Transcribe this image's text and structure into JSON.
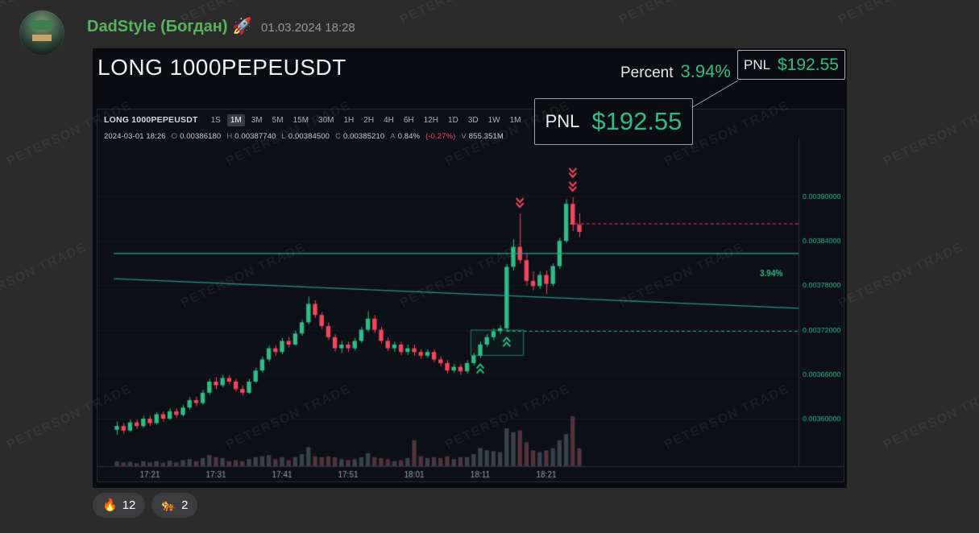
{
  "watermark": {
    "text": "PETERSON TRADE"
  },
  "header": {
    "name": "DadStyle (Богдан) 🚀",
    "timestamp": "01.03.2024 18:28"
  },
  "card": {
    "title": "LONG 1000PEPEUSDT",
    "percent_label": "Percent",
    "percent_value": "3.94%",
    "pnl_label": "PNL",
    "pnl_value": "$192.55",
    "callout": {
      "pnl_label": "PNL",
      "pnl_value": "$192.55"
    }
  },
  "colors": {
    "green": "#2ebd85",
    "red": "#f6465d",
    "teal": "#26a69a",
    "axis_text": "#2ebd85",
    "time_text": "#9aa0a6"
  },
  "chart_data": {
    "type": "candlestick",
    "symbol": "LONG 1000PEPEUSDT",
    "timeframes": [
      "1S",
      "1M",
      "3M",
      "5M",
      "15M",
      "30M",
      "1H",
      "2H",
      "4H",
      "6H",
      "12H",
      "1D",
      "3D",
      "1W",
      "1M"
    ],
    "active_timeframe_index": 1,
    "info_bar": {
      "datetime": "2024-03-01 18:26",
      "fields": [
        [
          "O",
          "0.00386180"
        ],
        [
          "H",
          "0.00387740"
        ],
        [
          "L",
          "0.00384500"
        ],
        [
          "C",
          "0.00385210"
        ],
        [
          "A",
          "0.84%"
        ]
      ],
      "change": "(-0.27%)",
      "volume": [
        "V",
        "855.351M"
      ]
    },
    "price_unit": 1e-05,
    "y_axis": {
      "labels": [
        "0.00390000",
        "0.00384000",
        "0.00378000",
        "0.00372000",
        "0.00366000",
        "0.00360000"
      ],
      "values": [
        390,
        384,
        378,
        372,
        366,
        360
      ]
    },
    "x_axis": {
      "labels": [
        "17:21",
        "17:31",
        "17:41",
        "17:51",
        "18:01",
        "18:11",
        "18:21"
      ],
      "indices": [
        5,
        15,
        25,
        35,
        45,
        55,
        65
      ]
    },
    "start_time": "17:16",
    "interval_minutes": 1,
    "candles": [
      [
        358.5,
        359.6,
        357.8,
        359.0,
        0.5
      ],
      [
        359.0,
        359.4,
        358.0,
        358.4,
        0.4
      ],
      [
        358.4,
        359.9,
        358.2,
        359.5,
        0.45
      ],
      [
        359.5,
        359.9,
        358.6,
        359.0,
        0.3
      ],
      [
        359.0,
        360.4,
        358.8,
        360.0,
        0.5
      ],
      [
        360.0,
        360.4,
        359.0,
        359.4,
        0.4
      ],
      [
        359.4,
        360.9,
        359.2,
        360.6,
        0.5
      ],
      [
        360.6,
        361.0,
        359.6,
        360.0,
        0.35
      ],
      [
        360.0,
        361.4,
        359.8,
        361.0,
        0.55
      ],
      [
        361.0,
        361.4,
        360.1,
        360.5,
        0.4
      ],
      [
        360.5,
        361.9,
        360.3,
        361.5,
        0.6
      ],
      [
        361.5,
        362.9,
        361.2,
        362.5,
        0.7
      ],
      [
        362.5,
        363.0,
        361.7,
        362.1,
        0.5
      ],
      [
        362.1,
        363.9,
        361.9,
        363.5,
        0.8
      ],
      [
        363.5,
        365.4,
        363.2,
        365.0,
        1.1
      ],
      [
        365.0,
        365.6,
        364.0,
        364.5,
        0.9
      ],
      [
        364.5,
        365.9,
        364.2,
        365.5,
        0.8
      ],
      [
        365.5,
        365.9,
        364.6,
        365.0,
        0.5
      ],
      [
        365.0,
        365.4,
        363.7,
        364.0,
        0.6
      ],
      [
        364.0,
        364.5,
        363.1,
        363.5,
        0.5
      ],
      [
        363.5,
        365.4,
        363.3,
        365.0,
        0.7
      ],
      [
        365.0,
        366.9,
        364.8,
        366.5,
        0.9
      ],
      [
        366.5,
        368.4,
        366.2,
        368.0,
        1.0
      ],
      [
        368.0,
        369.9,
        367.7,
        369.5,
        1.1
      ],
      [
        369.5,
        369.9,
        368.5,
        369.0,
        0.7
      ],
      [
        369.0,
        370.9,
        368.7,
        370.5,
        0.9
      ],
      [
        370.5,
        371.0,
        369.6,
        370.0,
        0.6
      ],
      [
        370.0,
        371.9,
        369.8,
        371.5,
        0.9
      ],
      [
        371.5,
        373.4,
        371.2,
        373.0,
        1.2
      ],
      [
        373.0,
        376.5,
        372.7,
        375.5,
        1.9
      ],
      [
        375.5,
        376.0,
        373.6,
        374.0,
        1.0
      ],
      [
        374.0,
        374.4,
        372.1,
        372.5,
        0.9
      ],
      [
        372.5,
        373.0,
        370.6,
        371.0,
        1.0
      ],
      [
        371.0,
        371.4,
        369.1,
        369.5,
        0.9
      ],
      [
        369.5,
        370.5,
        368.9,
        370.0,
        0.7
      ],
      [
        370.0,
        370.4,
        369.0,
        369.5,
        0.6
      ],
      [
        369.5,
        370.9,
        369.2,
        370.5,
        0.7
      ],
      [
        370.5,
        372.4,
        370.2,
        372.0,
        0.9
      ],
      [
        372.0,
        374.5,
        371.7,
        373.5,
        1.3
      ],
      [
        373.5,
        374.0,
        371.6,
        372.0,
        0.9
      ],
      [
        372.0,
        372.4,
        370.1,
        370.5,
        0.8
      ],
      [
        370.5,
        371.0,
        369.1,
        369.5,
        0.7
      ],
      [
        369.5,
        370.4,
        369.0,
        370.0,
        0.5
      ],
      [
        370.0,
        370.4,
        368.6,
        369.0,
        0.6
      ],
      [
        369.0,
        370.0,
        368.6,
        369.5,
        0.8
      ],
      [
        369.5,
        370.0,
        368.5,
        369.0,
        2.6
      ],
      [
        369.0,
        369.4,
        368.1,
        368.5,
        1.0
      ],
      [
        368.5,
        369.4,
        368.2,
        369.0,
        0.8
      ],
      [
        369.0,
        369.4,
        367.6,
        368.0,
        0.9
      ],
      [
        368.0,
        368.4,
        367.1,
        367.5,
        0.8
      ],
      [
        367.5,
        367.9,
        366.1,
        366.5,
        1.0
      ],
      [
        366.5,
        367.4,
        366.2,
        367.0,
        0.7
      ],
      [
        367.0,
        367.4,
        365.9,
        366.4,
        0.9
      ],
      [
        366.4,
        367.9,
        366.1,
        367.5,
        0.9
      ],
      [
        367.5,
        368.9,
        367.2,
        368.5,
        1.2
      ],
      [
        368.5,
        370.4,
        368.2,
        370.0,
        1.8
      ],
      [
        370.0,
        371.4,
        369.7,
        371.0,
        1.6
      ],
      [
        371.0,
        372.2,
        370.6,
        371.8,
        1.5
      ],
      [
        371.8,
        372.6,
        371.4,
        372.2,
        1.4
      ],
      [
        372.2,
        380.9,
        371.8,
        380.5,
        3.8
      ],
      [
        380.5,
        384.2,
        380.0,
        383.2,
        3.4
      ],
      [
        383.2,
        387.7,
        380.9,
        381.4,
        3.6
      ],
      [
        381.4,
        382.4,
        377.9,
        378.6,
        2.4
      ],
      [
        378.6,
        379.9,
        377.3,
        377.9,
        1.6
      ],
      [
        377.9,
        379.9,
        377.5,
        379.4,
        1.4
      ],
      [
        379.4,
        380.0,
        376.8,
        378.2,
        1.6
      ],
      [
        378.2,
        381.0,
        377.9,
        380.6,
        1.8
      ],
      [
        380.6,
        384.4,
        380.2,
        384.0,
        2.6
      ],
      [
        384.0,
        389.6,
        383.7,
        389.0,
        3.2
      ],
      [
        389.0,
        389.9,
        385.3,
        386.2,
        5.0
      ],
      [
        386.18,
        387.74,
        384.5,
        385.21,
        1.8
      ]
    ],
    "overlays": {
      "resistance_line": {
        "price": 382.3,
        "style": "solid",
        "color": "#26a69a"
      },
      "trend_line": {
        "price_start": 378.9,
        "price_end": 374.9,
        "style": "solid",
        "color": "#26a69a"
      },
      "tp_line": {
        "price": 386.3,
        "start_index": 69,
        "style": "dashed",
        "color": "#f6465d"
      },
      "entry_line": {
        "price": 371.8,
        "start_index": 59,
        "style": "dashed",
        "color": "#2ebd85"
      },
      "entry_box": {
        "start_index": 54,
        "end_index": 61,
        "price_top": 372.0,
        "price_bottom": 368.6,
        "color": "#2ebd85"
      },
      "percent_label": {
        "text": "3.94%",
        "price": 379.6
      }
    },
    "markers": {
      "buy": [
        {
          "index": 55
        },
        {
          "index": 59
        }
      ],
      "sell": [
        {
          "index": 61,
          "count": 1
        },
        {
          "index": 69,
          "count": 2
        }
      ]
    }
  },
  "reactions": [
    {
      "emoji": "🔥",
      "count": "12"
    },
    {
      "emoji": "🐅",
      "count": "2"
    }
  ]
}
